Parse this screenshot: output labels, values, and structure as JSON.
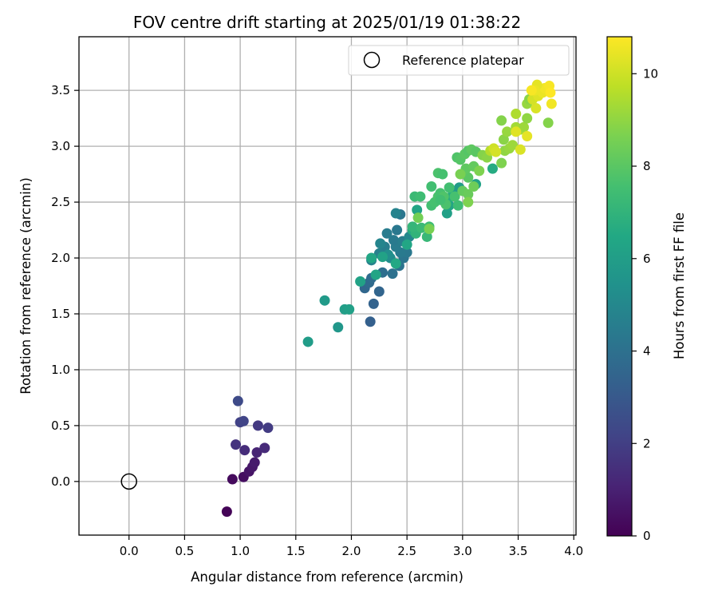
{
  "chart_data": {
    "type": "scatter",
    "title": "FOV centre drift starting at 2025/01/19 01:38:22",
    "xlabel": "Angular distance from reference (arcmin)",
    "ylabel": "Rotation from reference (arcmin)",
    "xlim": [
      -0.45,
      4.02
    ],
    "ylim": [
      -0.48,
      3.98
    ],
    "x_ticks": [
      "0.0",
      "0.5",
      "1.0",
      "1.5",
      "2.0",
      "2.5",
      "3.0",
      "3.5",
      "4.0"
    ],
    "y_ticks": [
      "0.0",
      "0.5",
      "1.0",
      "1.5",
      "2.0",
      "2.5",
      "3.0",
      "3.5"
    ],
    "grid": true,
    "legend": {
      "position": "top-right",
      "entries": [
        "Reference platepar"
      ]
    },
    "reference_point": {
      "name": "Reference platepar",
      "x": 0.0,
      "y": 0.0,
      "marker": "hollow-circle"
    },
    "colorbar": {
      "label": "Hours from first FF file",
      "colormap": "viridis",
      "range": [
        0,
        10.8
      ],
      "ticks": [
        "0",
        "2",
        "4",
        "6",
        "8",
        "10"
      ]
    },
    "points": [
      {
        "x": 0.88,
        "y": -0.27,
        "hours": 0.1
      },
      {
        "x": 0.93,
        "y": 0.02,
        "hours": 0.3
      },
      {
        "x": 1.03,
        "y": 0.04,
        "hours": 0.4
      },
      {
        "x": 1.08,
        "y": 0.09,
        "hours": 0.6
      },
      {
        "x": 1.11,
        "y": 0.13,
        "hours": 0.7
      },
      {
        "x": 1.13,
        "y": 0.17,
        "hours": 0.8
      },
      {
        "x": 1.15,
        "y": 0.26,
        "hours": 1.1
      },
      {
        "x": 1.22,
        "y": 0.3,
        "hours": 1.3
      },
      {
        "x": 1.04,
        "y": 0.28,
        "hours": 1.4
      },
      {
        "x": 0.96,
        "y": 0.33,
        "hours": 1.6
      },
      {
        "x": 1.16,
        "y": 0.5,
        "hours": 1.8
      },
      {
        "x": 1.25,
        "y": 0.48,
        "hours": 1.9
      },
      {
        "x": 1.0,
        "y": 0.53,
        "hours": 2.1
      },
      {
        "x": 1.03,
        "y": 0.54,
        "hours": 2.2
      },
      {
        "x": 0.98,
        "y": 0.72,
        "hours": 2.4
      },
      {
        "x": 2.17,
        "y": 1.43,
        "hours": 3.3
      },
      {
        "x": 2.2,
        "y": 1.59,
        "hours": 3.4
      },
      {
        "x": 2.25,
        "y": 1.7,
        "hours": 3.5
      },
      {
        "x": 2.12,
        "y": 1.73,
        "hours": 3.6
      },
      {
        "x": 2.16,
        "y": 1.78,
        "hours": 3.7
      },
      {
        "x": 2.18,
        "y": 1.82,
        "hours": 3.8
      },
      {
        "x": 2.28,
        "y": 1.87,
        "hours": 3.9
      },
      {
        "x": 2.37,
        "y": 1.86,
        "hours": 4.0
      },
      {
        "x": 2.43,
        "y": 1.93,
        "hours": 4.1
      },
      {
        "x": 2.47,
        "y": 2.0,
        "hours": 4.2
      },
      {
        "x": 2.5,
        "y": 2.05,
        "hours": 4.3
      },
      {
        "x": 2.44,
        "y": 2.05,
        "hours": 4.4
      },
      {
        "x": 2.4,
        "y": 2.1,
        "hours": 4.5
      },
      {
        "x": 2.3,
        "y": 2.1,
        "hours": 4.6
      },
      {
        "x": 2.25,
        "y": 2.04,
        "hours": 4.7
      },
      {
        "x": 2.18,
        "y": 1.98,
        "hours": 4.8
      },
      {
        "x": 2.26,
        "y": 2.13,
        "hours": 4.9
      },
      {
        "x": 2.32,
        "y": 2.22,
        "hours": 4.5
      },
      {
        "x": 2.41,
        "y": 2.25,
        "hours": 4.3
      },
      {
        "x": 2.38,
        "y": 2.16,
        "hours": 4.4
      },
      {
        "x": 2.46,
        "y": 2.15,
        "hours": 4.6
      },
      {
        "x": 2.44,
        "y": 2.39,
        "hours": 4.2
      },
      {
        "x": 2.4,
        "y": 2.4,
        "hours": 4.8
      },
      {
        "x": 2.52,
        "y": 2.19,
        "hours": 5.0
      },
      {
        "x": 2.35,
        "y": 2.0,
        "hours": 5.2
      },
      {
        "x": 2.33,
        "y": 2.03,
        "hours": 5.3
      },
      {
        "x": 1.61,
        "y": 1.25,
        "hours": 5.9
      },
      {
        "x": 1.76,
        "y": 1.62,
        "hours": 5.8
      },
      {
        "x": 1.88,
        "y": 1.38,
        "hours": 5.7
      },
      {
        "x": 1.94,
        "y": 1.54,
        "hours": 6.0
      },
      {
        "x": 1.98,
        "y": 1.54,
        "hours": 6.1
      },
      {
        "x": 2.08,
        "y": 1.79,
        "hours": 6.2
      },
      {
        "x": 2.22,
        "y": 1.85,
        "hours": 6.3
      },
      {
        "x": 2.28,
        "y": 2.01,
        "hours": 6.2
      },
      {
        "x": 2.18,
        "y": 2.0,
        "hours": 6.4
      },
      {
        "x": 2.4,
        "y": 1.95,
        "hours": 6.5
      },
      {
        "x": 2.5,
        "y": 2.12,
        "hours": 6.4
      },
      {
        "x": 2.55,
        "y": 2.25,
        "hours": 6.6
      },
      {
        "x": 2.59,
        "y": 2.43,
        "hours": 6.3
      },
      {
        "x": 2.86,
        "y": 2.4,
        "hours": 6.1
      },
      {
        "x": 2.88,
        "y": 2.47,
        "hours": 6.3
      },
      {
        "x": 2.93,
        "y": 2.6,
        "hours": 6.0
      },
      {
        "x": 2.97,
        "y": 2.63,
        "hours": 5.9
      },
      {
        "x": 3.12,
        "y": 2.66,
        "hours": 6.2
      },
      {
        "x": 3.27,
        "y": 2.8,
        "hours": 6.6
      },
      {
        "x": 2.9,
        "y": 2.55,
        "hours": 6.7
      },
      {
        "x": 2.68,
        "y": 2.19,
        "hours": 7.2
      },
      {
        "x": 2.58,
        "y": 2.22,
        "hours": 7.0
      },
      {
        "x": 2.55,
        "y": 2.28,
        "hours": 7.1
      },
      {
        "x": 2.63,
        "y": 2.27,
        "hours": 7.3
      },
      {
        "x": 2.7,
        "y": 2.28,
        "hours": 7.4
      },
      {
        "x": 2.57,
        "y": 2.55,
        "hours": 7.3
      },
      {
        "x": 2.62,
        "y": 2.55,
        "hours": 7.4
      },
      {
        "x": 2.72,
        "y": 2.47,
        "hours": 7.5
      },
      {
        "x": 2.75,
        "y": 2.5,
        "hours": 7.6
      },
      {
        "x": 2.78,
        "y": 2.55,
        "hours": 7.7
      },
      {
        "x": 2.8,
        "y": 2.58,
        "hours": 7.6
      },
      {
        "x": 2.83,
        "y": 2.55,
        "hours": 7.8
      },
      {
        "x": 2.85,
        "y": 2.48,
        "hours": 7.7
      },
      {
        "x": 2.88,
        "y": 2.63,
        "hours": 7.5
      },
      {
        "x": 2.93,
        "y": 2.55,
        "hours": 7.6
      },
      {
        "x": 2.96,
        "y": 2.47,
        "hours": 7.4
      },
      {
        "x": 2.72,
        "y": 2.64,
        "hours": 7.5
      },
      {
        "x": 2.78,
        "y": 2.76,
        "hours": 7.7
      },
      {
        "x": 2.82,
        "y": 2.75,
        "hours": 7.6
      },
      {
        "x": 2.95,
        "y": 2.9,
        "hours": 7.8
      },
      {
        "x": 2.98,
        "y": 2.88,
        "hours": 7.9
      },
      {
        "x": 3.02,
        "y": 2.93,
        "hours": 8.0
      },
      {
        "x": 3.05,
        "y": 2.96,
        "hours": 7.9
      },
      {
        "x": 3.08,
        "y": 2.97,
        "hours": 8.1
      },
      {
        "x": 3.05,
        "y": 2.72,
        "hours": 8.0
      },
      {
        "x": 3.03,
        "y": 2.8,
        "hours": 8.1
      },
      {
        "x": 3.1,
        "y": 2.82,
        "hours": 8.2
      },
      {
        "x": 3.12,
        "y": 2.95,
        "hours": 8.0
      },
      {
        "x": 3.0,
        "y": 2.6,
        "hours": 8.2
      },
      {
        "x": 3.05,
        "y": 2.57,
        "hours": 8.3
      },
      {
        "x": 3.1,
        "y": 2.64,
        "hours": 8.4
      },
      {
        "x": 2.8,
        "y": 2.52,
        "hours": 7.5
      },
      {
        "x": 2.6,
        "y": 2.36,
        "hours": 8.5
      },
      {
        "x": 2.7,
        "y": 2.26,
        "hours": 8.6
      },
      {
        "x": 3.05,
        "y": 2.5,
        "hours": 8.7
      },
      {
        "x": 2.98,
        "y": 2.75,
        "hours": 8.6
      },
      {
        "x": 3.15,
        "y": 2.78,
        "hours": 8.7
      },
      {
        "x": 3.18,
        "y": 2.92,
        "hours": 8.8
      },
      {
        "x": 3.22,
        "y": 2.9,
        "hours": 8.9
      },
      {
        "x": 3.35,
        "y": 2.85,
        "hours": 8.7
      },
      {
        "x": 3.38,
        "y": 2.96,
        "hours": 9.0
      },
      {
        "x": 3.42,
        "y": 2.98,
        "hours": 9.1
      },
      {
        "x": 3.45,
        "y": 3.01,
        "hours": 9.2
      },
      {
        "x": 3.37,
        "y": 3.06,
        "hours": 8.9
      },
      {
        "x": 3.4,
        "y": 3.13,
        "hours": 9.1
      },
      {
        "x": 3.35,
        "y": 3.23,
        "hours": 8.8
      },
      {
        "x": 3.48,
        "y": 3.17,
        "hours": 9.3
      },
      {
        "x": 3.52,
        "y": 3.15,
        "hours": 9.4
      },
      {
        "x": 3.55,
        "y": 3.17,
        "hours": 9.2
      },
      {
        "x": 3.58,
        "y": 3.25,
        "hours": 9.0
      },
      {
        "x": 3.48,
        "y": 3.29,
        "hours": 9.5
      },
      {
        "x": 3.58,
        "y": 3.38,
        "hours": 9.1
      },
      {
        "x": 3.6,
        "y": 3.42,
        "hours": 8.9
      },
      {
        "x": 3.77,
        "y": 3.21,
        "hours": 8.8
      },
      {
        "x": 3.25,
        "y": 2.96,
        "hours": 9.6
      },
      {
        "x": 3.52,
        "y": 2.97,
        "hours": 10.2
      },
      {
        "x": 3.58,
        "y": 3.09,
        "hours": 10.4
      },
      {
        "x": 3.48,
        "y": 3.13,
        "hours": 10.3
      },
      {
        "x": 3.66,
        "y": 3.34,
        "hours": 10.2
      },
      {
        "x": 3.63,
        "y": 3.42,
        "hours": 10.1
      },
      {
        "x": 3.68,
        "y": 3.45,
        "hours": 10.3
      },
      {
        "x": 3.72,
        "y": 3.48,
        "hours": 10.5
      },
      {
        "x": 3.74,
        "y": 3.52,
        "hours": 10.6
      },
      {
        "x": 3.78,
        "y": 3.54,
        "hours": 10.7
      },
      {
        "x": 3.79,
        "y": 3.48,
        "hours": 10.8
      },
      {
        "x": 3.8,
        "y": 3.38,
        "hours": 10.6
      },
      {
        "x": 3.67,
        "y": 3.55,
        "hours": 10.4
      },
      {
        "x": 3.65,
        "y": 3.5,
        "hours": 10.5
      },
      {
        "x": 3.62,
        "y": 3.5,
        "hours": 10.7
      },
      {
        "x": 3.28,
        "y": 2.98,
        "hours": 10.0
      },
      {
        "x": 3.3,
        "y": 2.95,
        "hours": 10.1
      }
    ]
  }
}
